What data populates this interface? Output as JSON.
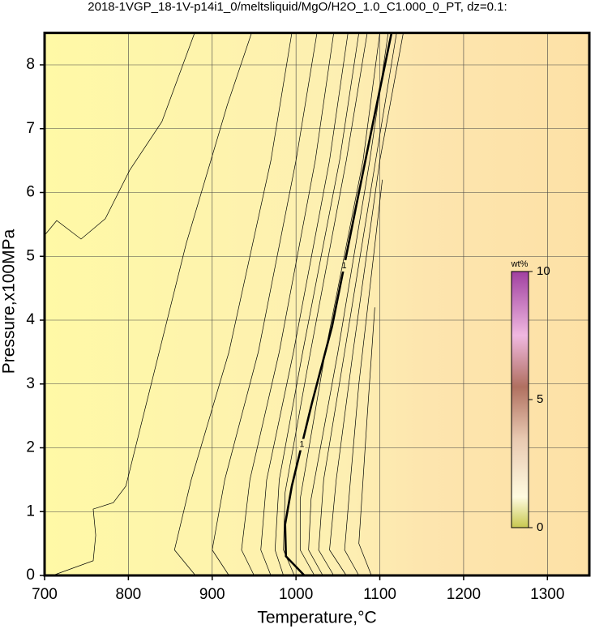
{
  "chart_data": {
    "type": "contour",
    "title": "2018-1VGP_18-1V-p14i1_0/meltsliquid/MgO/H2O_1.0_C1.000_0_PT, dz=0.1:",
    "x_label": "Temperature,°C",
    "y_label": "Pressure,x100MPa",
    "xlim": [
      700,
      1350
    ],
    "ylim": [
      0,
      8.5
    ],
    "xticks": [
      700,
      800,
      900,
      1000,
      1100,
      1200,
      1300
    ],
    "yticks": [
      0,
      1,
      2,
      3,
      4,
      5,
      6,
      7,
      8
    ],
    "grid": true,
    "color": "#000000",
    "contours": [
      {
        "x": [
          700,
          714.5,
          743.5,
          772.5,
          801.6,
          840,
          879
        ],
        "y": [
          5.33,
          5.56,
          5.27,
          5.59,
          6.35,
          7.11,
          8.5
        ]
      },
      {
        "x": [
          709.7,
          758,
          761,
          758,
          782,
          797,
          821,
          869,
          918,
          947
        ],
        "y": [
          0,
          0.23,
          0.63,
          1.04,
          1.14,
          1.4,
          2.67,
          5.2,
          7.37,
          8.5
        ]
      },
      {
        "x": [
          880,
          855,
          875,
          920,
          970,
          995
        ],
        "y": [
          0,
          0.4,
          1.5,
          3.5,
          6.5,
          8.5
        ]
      },
      {
        "x": [
          920,
          900,
          915,
          955,
          1000,
          1025
        ],
        "y": [
          0,
          0.4,
          1.5,
          3.5,
          6.5,
          8.5
        ]
      },
      {
        "x": [
          950,
          935,
          945,
          980,
          1023,
          1045
        ],
        "y": [
          0,
          0.4,
          1.5,
          3.5,
          6.5,
          8.5
        ]
      },
      {
        "x": [
          970,
          958,
          965,
          997,
          1040,
          1062
        ],
        "y": [
          0,
          0.4,
          1.5,
          3.5,
          6.5,
          8.5
        ]
      },
      {
        "x": [
          985,
          975,
          980,
          1008,
          1052,
          1075
        ],
        "y": [
          0,
          0.4,
          1.5,
          3.5,
          6.5,
          8.5
        ]
      },
      {
        "x": [
          998,
          985,
          987,
          1013,
          1060,
          1085
        ],
        "y": [
          0,
          0.4,
          1.3,
          3.2,
          6.5,
          8.5
        ]
      },
      {
        "x": [
          1010,
          988,
          987,
          995,
          1019,
          1043,
          1072,
          1092,
          1114
        ],
        "y": [
          0,
          0.3,
          0.8,
          1.4,
          2.7,
          3.9,
          5.8,
          7.1,
          8.5
        ],
        "bold": true,
        "level": 1
      },
      {
        "x": [
          1022,
          1005,
          1005,
          1035,
          1080,
          1100
        ],
        "y": [
          0,
          0.4,
          1.2,
          3.5,
          6.5,
          8.5
        ]
      },
      {
        "x": [
          1032,
          1015,
          1018,
          1050,
          1088,
          1110
        ],
        "y": [
          0,
          0.4,
          1.2,
          3.5,
          6.5,
          8.5
        ]
      },
      {
        "x": [
          1045,
          1027,
          1033,
          1058,
          1095,
          1120
        ],
        "y": [
          0,
          0.4,
          1.5,
          3.5,
          6.5,
          8.5
        ]
      },
      {
        "x": [
          1060,
          1040,
          1048,
          1068,
          1100,
          1128
        ],
        "y": [
          0,
          0.4,
          1.5,
          3.5,
          6.5,
          8.5
        ]
      },
      {
        "x": [
          1075,
          1058,
          1065,
          1075,
          1103
        ],
        "y": [
          0,
          0.4,
          1.5,
          3.0,
          6.2
        ]
      },
      {
        "x": [
          1090,
          1075,
          1080,
          1085,
          1094
        ],
        "y": [
          0,
          0.5,
          1.5,
          2.5,
          4.2
        ]
      }
    ],
    "colorbar": {
      "label": "wt%",
      "lim": [
        0,
        10
      ],
      "ticks": [
        0,
        5,
        10
      ]
    }
  }
}
